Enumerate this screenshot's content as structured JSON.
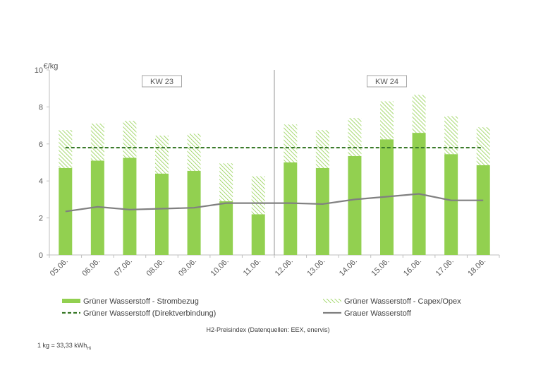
{
  "chart_data": {
    "type": "bar",
    "stacked": true,
    "ylabel": "€/kg",
    "ylim": [
      0,
      10
    ],
    "yticks": [
      0,
      2,
      4,
      6,
      8,
      10
    ],
    "grid": false,
    "legend_placement": "bottom",
    "categories": [
      "05.06.",
      "06.06.",
      "07.06.",
      "08.06.",
      "09.06.",
      "10.06.",
      "11.06.",
      "12.06.",
      "13.06.",
      "14.06.",
      "15.06.",
      "16.06.",
      "17.06.",
      "18.06."
    ],
    "groups": [
      {
        "label": "KW 23",
        "from": "05.06.",
        "to": "11.06."
      },
      {
        "label": "KW 24",
        "from": "12.06.",
        "to": "18.06."
      }
    ],
    "series": [
      {
        "name": "Grüner Wasserstoff - Strombezug",
        "kind": "bar",
        "color": "#92d050",
        "values": [
          4.7,
          5.1,
          5.25,
          4.4,
          4.55,
          2.9,
          2.2,
          5.0,
          4.7,
          5.35,
          6.25,
          6.6,
          5.45,
          4.85
        ]
      },
      {
        "name": "Grüner Wasserstoff - Capex/Opex",
        "kind": "bar-hatched",
        "color": "#92d050",
        "values": [
          2.05,
          2.0,
          2.0,
          2.05,
          2.0,
          2.05,
          2.05,
          2.05,
          2.05,
          2.05,
          2.05,
          2.05,
          2.05,
          2.05
        ]
      },
      {
        "name": "Grüner Wasserstoff (Direktverbindung)",
        "kind": "line-dashed",
        "color": "#3a7a2a",
        "values": [
          5.8,
          5.8,
          5.8,
          5.8,
          5.8,
          5.8,
          5.8,
          5.8,
          5.8,
          5.8,
          5.8,
          5.8,
          5.8,
          5.8
        ]
      },
      {
        "name": "Grauer Wasserstoff",
        "kind": "line",
        "color": "#808080",
        "values": [
          2.35,
          2.6,
          2.45,
          2.5,
          2.55,
          2.8,
          2.8,
          2.8,
          2.75,
          3.0,
          3.15,
          3.3,
          2.95,
          2.95
        ]
      }
    ],
    "caption": "H2-Preisindex (Datenquellen: EEX, enervis)",
    "footnote": "1 kg = 33,33 kWh",
    "footnote_sub": "Hi"
  }
}
